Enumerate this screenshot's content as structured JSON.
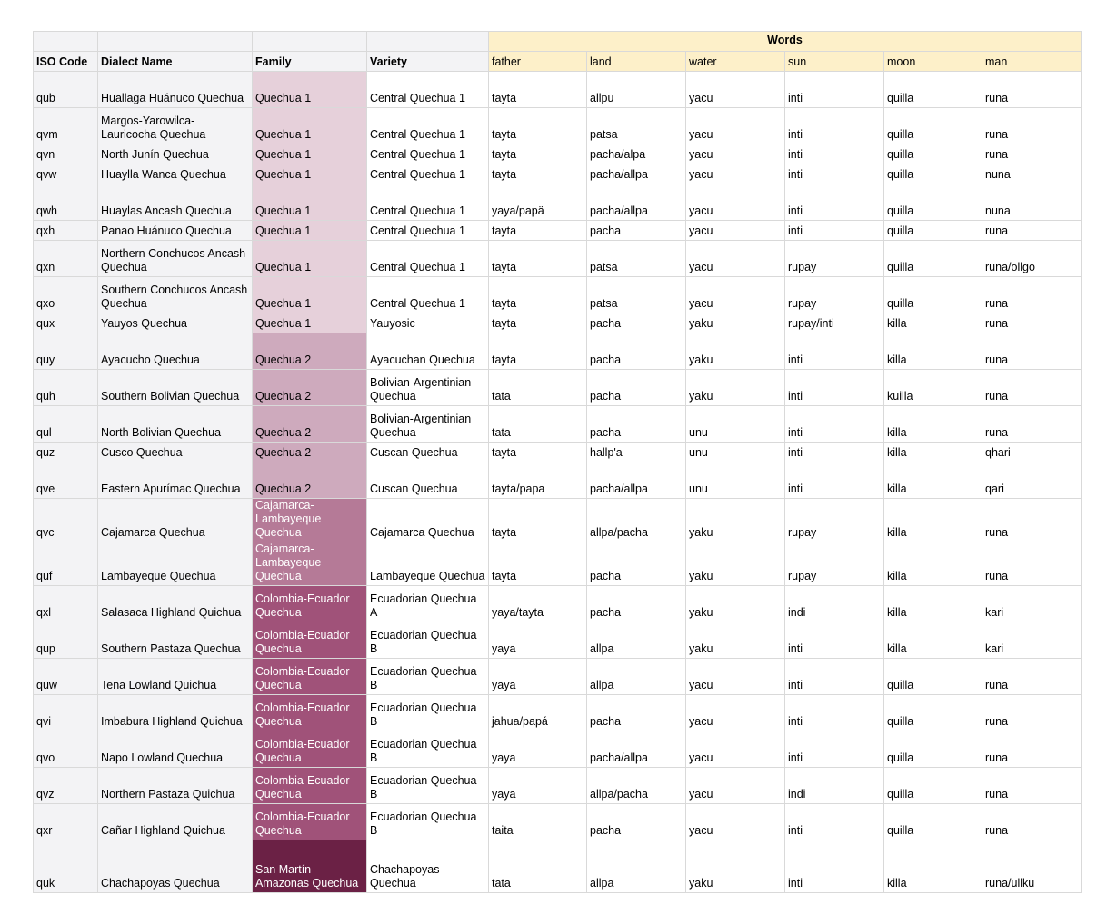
{
  "header": {
    "group_label": "Words",
    "columns": [
      "ISO Code",
      "Dialect Name",
      "Family",
      "Variety"
    ],
    "words": [
      "father",
      "land",
      "water",
      "sun",
      "moon",
      "man"
    ]
  },
  "family_colors": {
    "Quechua 1": "#e6d0da",
    "Quechua 2": "#ceaabd",
    "Cajamarca-Lambayeque Quechua": "#b57a97",
    "Colombia-Ecuador Quechua": "#a05279",
    "San Martín-Amazonas Quechua": "#6b2145"
  },
  "family_text_colors": {
    "Quechua 1": "#000000",
    "Quechua 2": "#000000",
    "Cajamarca-Lambayeque Quechua": "#ffffff",
    "Colombia-Ecuador Quechua": "#ffffff",
    "San Martín-Amazonas Quechua": "#ffffff"
  },
  "rows": [
    {
      "iso": "qub",
      "dialect": "Huallaga Huánuco Quechua",
      "family": "Quechua 1",
      "variety": "Central Quechua 1",
      "words": [
        "tayta",
        "allpu",
        "yacu",
        "inti",
        "quilla",
        "runa"
      ]
    },
    {
      "iso": "qvm",
      "dialect": "Margos-Yarowilca-Lauricocha Quechua",
      "family": "Quechua 1",
      "variety": "Central Quechua 1",
      "words": [
        "tayta",
        "patsa",
        "yacu",
        "inti",
        "quilla",
        "runa"
      ]
    },
    {
      "iso": "qvn",
      "dialect": "North Junín Quechua",
      "family": "Quechua 1",
      "variety": "Central Quechua 1",
      "words": [
        "tayta",
        "pacha/alpa",
        "yacu",
        "inti",
        "quilla",
        "runa"
      ]
    },
    {
      "iso": "qvw",
      "dialect": "Huaylla Wanca Quechua",
      "family": "Quechua 1",
      "variety": "Central Quechua 1",
      "words": [
        "tayta",
        "pacha/allpa",
        "yacu",
        "inti",
        "quilla",
        "nuna"
      ]
    },
    {
      "iso": "qwh",
      "dialect": "Huaylas Ancash Quechua",
      "family": "Quechua 1",
      "variety": "Central Quechua 1",
      "words": [
        "yaya/papä",
        "pacha/allpa",
        "yacu",
        "inti",
        "quilla",
        "nuna"
      ]
    },
    {
      "iso": "qxh",
      "dialect": "Panao Huánuco Quechua",
      "family": "Quechua 1",
      "variety": "Central Quechua 1",
      "words": [
        "tayta",
        "pacha",
        "yacu",
        "inti",
        "quilla",
        "runa"
      ]
    },
    {
      "iso": "qxn",
      "dialect": "Northern Conchucos Ancash Quechua",
      "family": "Quechua 1",
      "variety": "Central Quechua 1",
      "words": [
        "tayta",
        "patsa",
        "yacu",
        "rupay",
        "quilla",
        "runa/ollgo"
      ]
    },
    {
      "iso": "qxo",
      "dialect": "Southern Conchucos Ancash Quechua",
      "family": "Quechua 1",
      "variety": "Central Quechua 1",
      "words": [
        "tayta",
        "patsa",
        "yacu",
        "rupay",
        "quilla",
        "runa"
      ]
    },
    {
      "iso": "qux",
      "dialect": "Yauyos Quechua",
      "family": "Quechua 1",
      "variety": "Yauyosic",
      "words": [
        "tayta",
        "pacha",
        "yaku",
        "rupay/inti",
        "killa",
        "runa"
      ]
    },
    {
      "iso": "quy",
      "dialect": "Ayacucho Quechua",
      "family": "Quechua 2",
      "variety": "Ayacuchan Quechua",
      "words": [
        "tayta",
        "pacha",
        "yaku",
        "inti",
        "killa",
        "runa"
      ]
    },
    {
      "iso": "quh",
      "dialect": "Southern Bolivian Quechua",
      "family": "Quechua 2",
      "variety": "Bolivian-Argentinian Quechua",
      "words": [
        "tata",
        "pacha",
        "yaku",
        "inti",
        "kuilla",
        "runa"
      ]
    },
    {
      "iso": "qul",
      "dialect": "North Bolivian Quechua",
      "family": "Quechua 2",
      "variety": "Bolivian-Argentinian Quechua",
      "words": [
        "tata",
        "pacha",
        "unu",
        "inti",
        "killa",
        "runa"
      ]
    },
    {
      "iso": "quz",
      "dialect": "Cusco Quechua",
      "family": "Quechua 2",
      "variety": "Cuscan Quechua",
      "words": [
        "tayta",
        "hallp'a",
        "unu",
        "inti",
        "killa",
        "qhari"
      ]
    },
    {
      "iso": "qve",
      "dialect": "Eastern Apurímac Quechua",
      "family": "Quechua 2",
      "variety": "Cuscan Quechua",
      "words": [
        "tayta/papa",
        "pacha/allpa",
        "unu",
        "inti",
        "killa",
        "qari"
      ]
    },
    {
      "iso": "qvc",
      "dialect": "Cajamarca Quechua",
      "family": "Cajamarca-Lambayeque Quechua",
      "variety": "Cajamarca Quechua",
      "words": [
        "tayta",
        "allpa/pacha",
        "yaku",
        "rupay",
        "killa",
        "runa"
      ]
    },
    {
      "iso": "quf",
      "dialect": "Lambayeque Quechua",
      "family": "Cajamarca-Lambayeque Quechua",
      "variety": "Lambayeque Quechua",
      "words": [
        "tayta",
        "pacha",
        "yaku",
        "rupay",
        "killa",
        "runa"
      ]
    },
    {
      "iso": "qxl",
      "dialect": "Salasaca Highland Quichua",
      "family": "Colombia-Ecuador Quechua",
      "variety": "Ecuadorian Quechua A",
      "words": [
        "yaya/tayta",
        "pacha",
        "yaku",
        "indi",
        "killa",
        "kari"
      ]
    },
    {
      "iso": "qup",
      "dialect": "Southern Pastaza Quechua",
      "family": "Colombia-Ecuador Quechua",
      "variety": "Ecuadorian Quechua B",
      "words": [
        "yaya",
        "allpa",
        "yaku",
        "inti",
        "killa",
        "kari"
      ]
    },
    {
      "iso": "quw",
      "dialect": "Tena Lowland Quichua",
      "family": "Colombia-Ecuador Quechua",
      "variety": "Ecuadorian Quechua B",
      "words": [
        "yaya",
        "allpa",
        "yacu",
        "inti",
        "quilla",
        "runa"
      ]
    },
    {
      "iso": "qvi",
      "dialect": "Imbabura Highland Quichua",
      "family": "Colombia-Ecuador Quechua",
      "variety": "Ecuadorian Quechua B",
      "words": [
        "jahua/papá",
        "pacha",
        "yacu",
        "inti",
        "quilla",
        "runa"
      ]
    },
    {
      "iso": "qvo",
      "dialect": "Napo Lowland Quechua",
      "family": "Colombia-Ecuador Quechua",
      "variety": "Ecuadorian Quechua B",
      "words": [
        "yaya",
        "pacha/allpa",
        "yacu",
        "inti",
        "quilla",
        "runa"
      ]
    },
    {
      "iso": "qvz",
      "dialect": "Northern Pastaza Quichua",
      "family": "Colombia-Ecuador Quechua",
      "variety": "Ecuadorian Quechua B",
      "words": [
        "yaya",
        "allpa/pacha",
        "yacu",
        "indi",
        "quilla",
        "runa"
      ]
    },
    {
      "iso": "qxr",
      "dialect": "Cañar Highland Quichua",
      "family": "Colombia-Ecuador Quechua",
      "variety": "Ecuadorian Quechua B",
      "words": [
        "taita",
        "pacha",
        "yacu",
        "inti",
        "quilla",
        "runa"
      ]
    },
    {
      "iso": "quk",
      "dialect": "Chachapoyas Quechua",
      "family": "San Martín-Amazonas Quechua",
      "variety": "Chachapoyas Quechua",
      "words": [
        "tata",
        "allpa",
        "yaku",
        "inti",
        "killa",
        "runa/ullku"
      ]
    }
  ]
}
